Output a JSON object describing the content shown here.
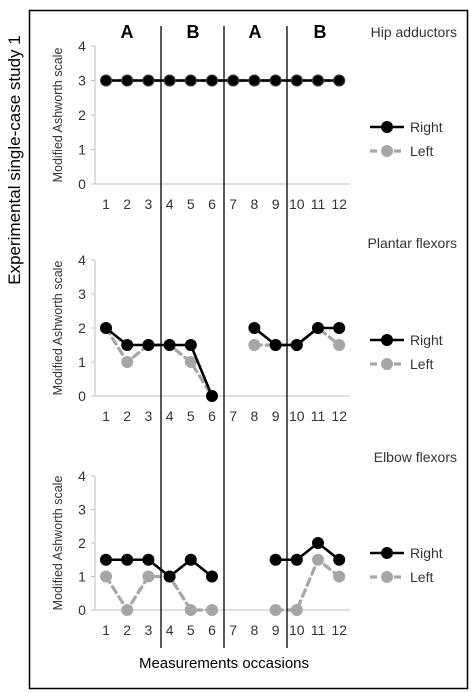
{
  "figure": {
    "side_title": "Experimental single-case study 1",
    "xlabel": "Measurements occasions",
    "phases": [
      "A",
      "B",
      "A",
      "B"
    ]
  },
  "chart_data": [
    {
      "type": "line",
      "title": "Hip adductors",
      "ylabel": "Modified Ashworth scale",
      "ylim": [
        0,
        4
      ],
      "yticks": [
        "0",
        "1",
        "2",
        "3",
        "4"
      ],
      "categories": [
        "1",
        "2",
        "3",
        "4",
        "5",
        "6",
        "7",
        "8",
        "9",
        "10",
        "11",
        "12"
      ],
      "series": [
        {
          "name": "Right",
          "color": "#000000",
          "dash": false,
          "marker_fill": "#000000",
          "values": [
            3,
            3,
            3,
            3,
            3,
            3,
            3,
            3,
            3,
            3,
            3,
            3
          ]
        },
        {
          "name": "Left",
          "color": "#a6a6a6",
          "dash": true,
          "marker_fill": "#a6a6a6",
          "values": [
            3,
            3,
            3,
            3,
            3,
            3,
            3,
            3,
            3,
            3,
            3,
            3
          ]
        }
      ],
      "legend": "right"
    },
    {
      "type": "line",
      "title": "Plantar flexors",
      "ylabel": "Modified Ashworth scale",
      "ylim": [
        0,
        4
      ],
      "yticks": [
        "0",
        "1",
        "2",
        "3",
        "4"
      ],
      "categories": [
        "1",
        "2",
        "3",
        "4",
        "5",
        "6",
        "7",
        "8",
        "9",
        "10",
        "11",
        "12"
      ],
      "series": [
        {
          "name": "Right",
          "color": "#000000",
          "dash": false,
          "marker_fill": "#000000",
          "values": [
            2,
            1.5,
            1.5,
            1.5,
            1.5,
            0,
            null,
            2,
            1.5,
            1.5,
            2,
            2
          ]
        },
        {
          "name": "Left",
          "color": "#a6a6a6",
          "dash": true,
          "marker_fill": "#a6a6a6",
          "values": [
            2,
            1,
            1.5,
            1.5,
            1,
            0,
            null,
            1.5,
            1.5,
            1.5,
            2,
            1.5
          ]
        }
      ],
      "legend": "right"
    },
    {
      "type": "line",
      "title": "Elbow flexors",
      "ylabel": "Modified Ashworth scale",
      "ylim": [
        0,
        4
      ],
      "yticks": [
        "0",
        "1",
        "2",
        "3",
        "4"
      ],
      "categories": [
        "1",
        "2",
        "3",
        "4",
        "5",
        "6",
        "7",
        "8",
        "9",
        "10",
        "11",
        "12"
      ],
      "series": [
        {
          "name": "Right",
          "color": "#000000",
          "dash": false,
          "marker_fill": "#000000",
          "values": [
            1.5,
            1.5,
            1.5,
            1,
            1.5,
            1,
            null,
            null,
            1.5,
            1.5,
            2,
            1.5
          ]
        },
        {
          "name": "Left",
          "color": "#a6a6a6",
          "dash": true,
          "marker_fill": "#a6a6a6",
          "values": [
            1,
            0,
            1,
            1,
            0,
            0,
            null,
            null,
            0,
            0,
            1.5,
            1
          ]
        }
      ],
      "legend": "right"
    }
  ]
}
